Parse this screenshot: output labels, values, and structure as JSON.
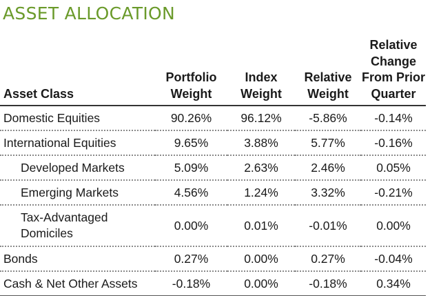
{
  "title": "ASSET ALLOCATION",
  "headers": {
    "asset_class": "Asset Class",
    "portfolio_weight": [
      "Portfolio",
      "Weight"
    ],
    "index_weight": [
      "Index",
      "Weight"
    ],
    "relative_weight": [
      "Relative",
      "Weight"
    ],
    "relative_change": [
      "Relative",
      "Change",
      "From Prior",
      "Quarter"
    ]
  },
  "rows": [
    {
      "label": "Domestic Equities",
      "portfolio": "90.26%",
      "index": "96.12%",
      "relative": "-5.86%",
      "change": "-0.14%"
    },
    {
      "label": "International Equities",
      "portfolio": "9.65%",
      "index": "3.88%",
      "relative": "5.77%",
      "change": "-0.16%"
    },
    {
      "label": "Developed Markets",
      "portfolio": "5.09%",
      "index": "2.63%",
      "relative": "2.46%",
      "change": "0.05%"
    },
    {
      "label": "Emerging Markets",
      "portfolio": "4.56%",
      "index": "1.24%",
      "relative": "3.32%",
      "change": "-0.21%"
    },
    {
      "label": [
        "Tax-Advantaged",
        "Domiciles"
      ],
      "portfolio": "0.00%",
      "index": "0.01%",
      "relative": "-0.01%",
      "change": "0.00%"
    },
    {
      "label": "Bonds",
      "portfolio": "0.27%",
      "index": "0.00%",
      "relative": "0.27%",
      "change": "-0.04%"
    },
    {
      "label": "Cash & Net Other Assets",
      "portfolio": "-0.18%",
      "index": "0.00%",
      "relative": "-0.18%",
      "change": "0.34%"
    }
  ],
  "colors": {
    "title": "#6a9a2a",
    "text": "#1a1a1a",
    "rule": "#333333",
    "dotted_rule": "#8a8a8a"
  }
}
